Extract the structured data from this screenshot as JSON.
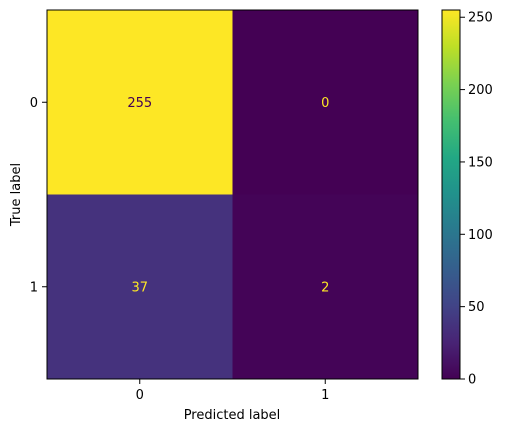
{
  "chart_data": {
    "type": "heatmap",
    "title": "",
    "xlabel": "Predicted label",
    "ylabel": "True label",
    "x_categories": [
      "0",
      "1"
    ],
    "y_categories": [
      "0",
      "1"
    ],
    "values": [
      [
        255,
        0
      ],
      [
        37,
        2
      ]
    ],
    "value_labels": [
      [
        "255",
        "0"
      ],
      [
        "37",
        "2"
      ]
    ],
    "colorbar": {
      "min": 0,
      "max": 255,
      "ticks": [
        0,
        50,
        100,
        150,
        200,
        250
      ],
      "tick_labels": [
        "0",
        "50",
        "100",
        "150",
        "200",
        "250"
      ]
    },
    "colormap": "viridis",
    "text_color_on_dark": "#fde725",
    "text_color_on_light": "#440154",
    "grid": false,
    "legend": "colorbar-right"
  }
}
